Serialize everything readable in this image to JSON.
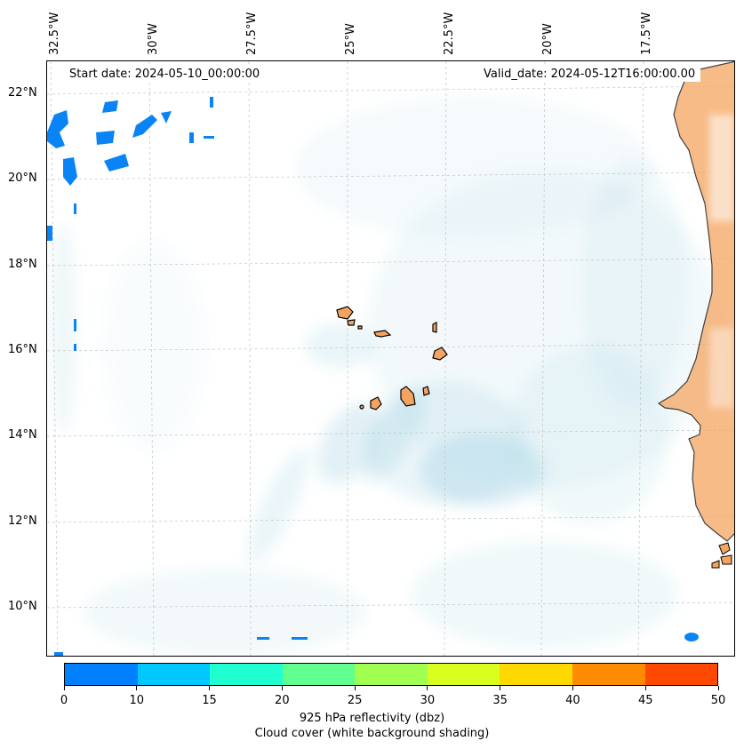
{
  "map": {
    "annotations": {
      "start_date": "Start date: 2024-05-10_00:00:00",
      "valid_date": "Valid_date: 2024-05-12T16:00:00.00"
    },
    "longitude_labels": [
      "32.5°W",
      "30°W",
      "27.5°W",
      "25°W",
      "22.5°W",
      "20°W",
      "17.5°W"
    ],
    "latitude_labels": [
      "22°N",
      "20°N",
      "18°N",
      "16°N",
      "14°N",
      "12°N",
      "10°N"
    ],
    "extent": {
      "lon_min": -33.0,
      "lon_max": -15.2,
      "lat_min": 9.0,
      "lat_max": 22.8
    },
    "places_shown": [
      "Cabo Verde islands",
      "West African coast (Senegal / Mauritania / Gambia / Guinea-Bissau)"
    ],
    "colors": {
      "cloud_shading": "#add8e6",
      "reflectivity_low": "#0080ff",
      "land_high_reflectivity": "#f4a460",
      "coastline": "#000000"
    }
  },
  "colorbar": {
    "colors": [
      "#0080ff",
      "#00c8ff",
      "#20ffd0",
      "#60ff90",
      "#a0ff50",
      "#d8ff20",
      "#ffd800",
      "#ff8c00",
      "#ff4800"
    ],
    "ticks": [
      "0",
      "10",
      "15",
      "20",
      "25",
      "30",
      "35",
      "40",
      "45",
      "50"
    ],
    "label_line1": "925 hPa reflectivity (dbz)",
    "label_line2": "Cloud cover (white background shading)"
  }
}
